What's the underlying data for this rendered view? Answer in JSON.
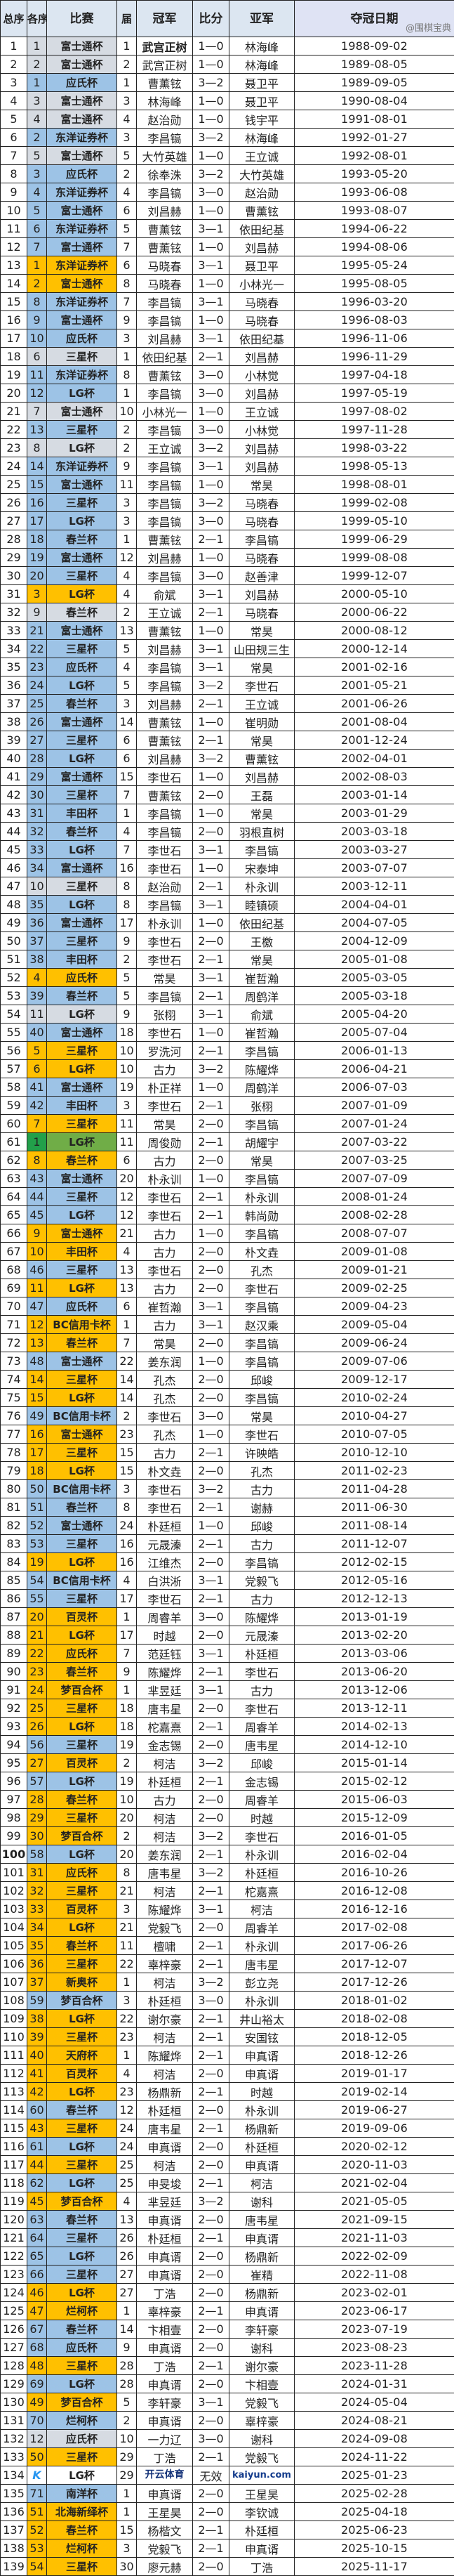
{
  "headers": [
    "总序",
    "各序",
    "比赛",
    "届",
    "冠军",
    "比分",
    "亚军",
    "夺冠日期"
  ],
  "region_colors": {
    "j": "#d6dbe2",
    "k": "#9dc3e6",
    "c": "#ffc000",
    "t": "#5cab4a",
    "n": "#ffffff"
  },
  "rows": [
    [
      "1",
      "1",
      "富士通杯",
      "1",
      "武宫正树",
      "1—0",
      "林海峰",
      "1988-09-02",
      "j"
    ],
    [
      "2",
      "2",
      "富士通杯",
      "2",
      "武宫正树",
      "1—0",
      "林海峰",
      "1989-08-05",
      "j"
    ],
    [
      "3",
      "1",
      "应氏杯",
      "1",
      "曹薰铉",
      "3—2",
      "聂卫平",
      "1989-09-05",
      "k"
    ],
    [
      "4",
      "3",
      "富士通杯",
      "3",
      "林海峰",
      "1—0",
      "聂卫平",
      "1990-08-04",
      "j"
    ],
    [
      "5",
      "4",
      "富士通杯",
      "4",
      "赵治勋",
      "1—0",
      "钱宇平",
      "1991-08-01",
      "j"
    ],
    [
      "6",
      "2",
      "东洋证券杯",
      "3",
      "李昌镐",
      "3—2",
      "林海峰",
      "1992-01-27",
      "k"
    ],
    [
      "7",
      "5",
      "富士通杯",
      "5",
      "大竹英雄",
      "1—0",
      "王立诚",
      "1992-08-01",
      "j"
    ],
    [
      "8",
      "3",
      "应氏杯",
      "2",
      "徐奉洙",
      "3—2",
      "大竹英雄",
      "1993-05-20",
      "k"
    ],
    [
      "9",
      "4",
      "东洋证券杯",
      "4",
      "李昌镐",
      "3—0",
      "赵治勋",
      "1993-06-08",
      "k"
    ],
    [
      "10",
      "5",
      "富士通杯",
      "6",
      "刘昌赫",
      "1—0",
      "曹薰铉",
      "1993-08-07",
      "k"
    ],
    [
      "11",
      "6",
      "东洋证券杯",
      "5",
      "曹薰铉",
      "3—1",
      "依田纪基",
      "1994-06-22",
      "k"
    ],
    [
      "12",
      "7",
      "富士通杯",
      "7",
      "曹薰铉",
      "1—0",
      "刘昌赫",
      "1994-08-06",
      "k"
    ],
    [
      "13",
      "1",
      "东洋证券杯",
      "6",
      "马晓春",
      "3—1",
      "聂卫平",
      "1995-05-24",
      "c"
    ],
    [
      "14",
      "2",
      "富士通杯",
      "8",
      "马晓春",
      "1—0",
      "小林光一",
      "1995-08-05",
      "c"
    ],
    [
      "15",
      "8",
      "东洋证券杯",
      "7",
      "李昌镐",
      "3—1",
      "马晓春",
      "1996-03-20",
      "k"
    ],
    [
      "16",
      "9",
      "富士通杯",
      "9",
      "李昌镐",
      "1—0",
      "马晓春",
      "1996-08-03",
      "k"
    ],
    [
      "17",
      "10",
      "应氏杯",
      "3",
      "刘昌赫",
      "3—1",
      "依田纪基",
      "1996-11-06",
      "k"
    ],
    [
      "18",
      "6",
      "三星杯",
      "1",
      "依田纪基",
      "2—1",
      "刘昌赫",
      "1996-11-29",
      "j"
    ],
    [
      "19",
      "11",
      "东洋证券杯",
      "8",
      "曹薰铉",
      "3—0",
      "小林觉",
      "1997-04-18",
      "k"
    ],
    [
      "20",
      "12",
      "LG杯",
      "1",
      "李昌镐",
      "3—0",
      "刘昌赫",
      "1997-05-19",
      "k"
    ],
    [
      "21",
      "7",
      "富士通杯",
      "10",
      "小林光一",
      "1—0",
      "王立诚",
      "1997-08-02",
      "j"
    ],
    [
      "22",
      "13",
      "三星杯",
      "2",
      "李昌镐",
      "3—0",
      "小林觉",
      "1997-11-28",
      "k"
    ],
    [
      "23",
      "8",
      "LG杯",
      "2",
      "王立诚",
      "3—2",
      "刘昌赫",
      "1998-03-22",
      "j"
    ],
    [
      "24",
      "14",
      "东洋证券杯",
      "9",
      "李昌镐",
      "3—1",
      "刘昌赫",
      "1998-05-13",
      "k"
    ],
    [
      "25",
      "15",
      "富士通杯",
      "11",
      "李昌镐",
      "1—0",
      "常昊",
      "1998-08-01",
      "k"
    ],
    [
      "26",
      "16",
      "三星杯",
      "3",
      "李昌镐",
      "3—2",
      "马晓春",
      "1999-02-08",
      "k"
    ],
    [
      "27",
      "17",
      "LG杯",
      "3",
      "李昌镐",
      "3—0",
      "马晓春",
      "1999-05-10",
      "k"
    ],
    [
      "28",
      "18",
      "春兰杯",
      "1",
      "曹薰铉",
      "2—1",
      "李昌镐",
      "1999-06-29",
      "k"
    ],
    [
      "29",
      "19",
      "富士通杯",
      "12",
      "刘昌赫",
      "1—0",
      "马晓春",
      "1999-08-08",
      "k"
    ],
    [
      "30",
      "20",
      "三星杯",
      "4",
      "李昌镐",
      "3—0",
      "赵善津",
      "1999-12-07",
      "k"
    ],
    [
      "31",
      "3",
      "LG杯",
      "4",
      "俞斌",
      "3—1",
      "刘昌赫",
      "2000-05-10",
      "c"
    ],
    [
      "32",
      "9",
      "春兰杯",
      "2",
      "王立诚",
      "2—1",
      "马晓春",
      "2000-06-22",
      "j"
    ],
    [
      "33",
      "21",
      "富士通杯",
      "13",
      "曹薰铉",
      "1—0",
      "常昊",
      "2000-08-12",
      "k"
    ],
    [
      "34",
      "22",
      "三星杯",
      "5",
      "刘昌赫",
      "3—1",
      "山田规三生",
      "2000-12-14",
      "k"
    ],
    [
      "35",
      "23",
      "应氏杯",
      "4",
      "李昌镐",
      "3—1",
      "常昊",
      "2001-02-16",
      "k"
    ],
    [
      "36",
      "24",
      "LG杯",
      "5",
      "李昌镐",
      "3—2",
      "李世石",
      "2001-05-21",
      "k"
    ],
    [
      "37",
      "25",
      "春兰杯",
      "3",
      "刘昌赫",
      "2—1",
      "王立诚",
      "2001-06-26",
      "k"
    ],
    [
      "38",
      "26",
      "富士通杯",
      "14",
      "曹薰铉",
      "1—0",
      "崔明勋",
      "2001-08-04",
      "k"
    ],
    [
      "39",
      "27",
      "三星杯",
      "6",
      "曹薰铉",
      "2—1",
      "常昊",
      "2001-12-24",
      "k"
    ],
    [
      "40",
      "28",
      "LG杯",
      "6",
      "刘昌赫",
      "3—2",
      "曹薰铉",
      "2002-04-01",
      "k"
    ],
    [
      "41",
      "29",
      "富士通杯",
      "15",
      "李世石",
      "1—0",
      "刘昌赫",
      "2002-08-03",
      "k"
    ],
    [
      "42",
      "30",
      "三星杯",
      "7",
      "曹薰铉",
      "2—0",
      "王磊",
      "2003-01-14",
      "k"
    ],
    [
      "43",
      "31",
      "丰田杯",
      "1",
      "李昌镐",
      "1—0",
      "常昊",
      "2003-01-29",
      "k"
    ],
    [
      "44",
      "32",
      "春兰杯",
      "4",
      "李昌镐",
      "2—0",
      "羽根直树",
      "2003-03-18",
      "k"
    ],
    [
      "45",
      "33",
      "LG杯",
      "7",
      "李世石",
      "3—1",
      "李昌镐",
      "2003-03-27",
      "k"
    ],
    [
      "46",
      "34",
      "富士通杯",
      "16",
      "李世石",
      "1—0",
      "宋泰坤",
      "2003-07-07",
      "k"
    ],
    [
      "47",
      "10",
      "三星杯",
      "8",
      "赵治勋",
      "2—1",
      "朴永训",
      "2003-12-11",
      "j"
    ],
    [
      "48",
      "35",
      "LG杯",
      "8",
      "李昌镐",
      "3—1",
      "睦镇硕",
      "2004-04-01",
      "k"
    ],
    [
      "49",
      "36",
      "富士通杯",
      "17",
      "朴永训",
      "1—0",
      "依田纪基",
      "2004-07-05",
      "k"
    ],
    [
      "50",
      "37",
      "三星杯",
      "9",
      "李世石",
      "2—0",
      "王檄",
      "2004-12-09",
      "k"
    ],
    [
      "51",
      "38",
      "丰田杯",
      "2",
      "李世石",
      "2—1",
      "常昊",
      "2005-01-08",
      "k"
    ],
    [
      "52",
      "4",
      "应氏杯",
      "5",
      "常昊",
      "3—1",
      "崔哲瀚",
      "2005-03-05",
      "c"
    ],
    [
      "53",
      "39",
      "春兰杯",
      "5",
      "李昌镐",
      "2—1",
      "周鹤洋",
      "2005-03-18",
      "k"
    ],
    [
      "54",
      "11",
      "LG杯",
      "9",
      "张栩",
      "3—1",
      "俞斌",
      "2005-04-20",
      "j"
    ],
    [
      "55",
      "40",
      "富士通杯",
      "18",
      "李世石",
      "1—0",
      "崔哲瀚",
      "2005-07-04",
      "k"
    ],
    [
      "56",
      "5",
      "三星杯",
      "10",
      "罗洗河",
      "2—1",
      "李昌镐",
      "2006-01-13",
      "c"
    ],
    [
      "57",
      "6",
      "LG杯",
      "10",
      "古力",
      "3—2",
      "陈耀烨",
      "2006-04-21",
      "c"
    ],
    [
      "58",
      "41",
      "富士通杯",
      "19",
      "朴正祥",
      "1—0",
      "周鹤洋",
      "2006-07-03",
      "k"
    ],
    [
      "59",
      "42",
      "丰田杯",
      "3",
      "李世石",
      "2—1",
      "张栩",
      "2007-01-09",
      "k"
    ],
    [
      "60",
      "7",
      "三星杯",
      "11",
      "常昊",
      "2—0",
      "李昌镐",
      "2007-01-24",
      "c"
    ],
    [
      "61",
      "1",
      "LG杯",
      "11",
      "周俊勋",
      "2—1",
      "胡耀宇",
      "2007-03-22",
      "t"
    ],
    [
      "62",
      "8",
      "春兰杯",
      "6",
      "古力",
      "2—0",
      "常昊",
      "2007-03-25",
      "c"
    ],
    [
      "63",
      "43",
      "富士通杯",
      "20",
      "朴永训",
      "1—0",
      "李昌镐",
      "2007-07-09",
      "k"
    ],
    [
      "64",
      "44",
      "三星杯",
      "12",
      "李世石",
      "2—1",
      "朴永训",
      "2008-01-24",
      "k"
    ],
    [
      "65",
      "45",
      "LG杯",
      "12",
      "李世石",
      "2—1",
      "韩尚勋",
      "2008-02-28",
      "k"
    ],
    [
      "66",
      "9",
      "富士通杯",
      "21",
      "古力",
      "1—0",
      "李昌镐",
      "2008-07-07",
      "c"
    ],
    [
      "67",
      "10",
      "丰田杯",
      "4",
      "古力",
      "2—0",
      "朴文垚",
      "2009-01-08",
      "c"
    ],
    [
      "68",
      "46",
      "三星杯",
      "13",
      "李世石",
      "2—0",
      "孔杰",
      "2009-01-21",
      "k"
    ],
    [
      "69",
      "11",
      "LG杯",
      "13",
      "古力",
      "2—0",
      "李世石",
      "2009-02-25",
      "c"
    ],
    [
      "70",
      "47",
      "应氏杯",
      "6",
      "崔哲瀚",
      "3—1",
      "李昌镐",
      "2009-04-23",
      "k"
    ],
    [
      "71",
      "12",
      "BC信用卡杯",
      "1",
      "古力",
      "3—1",
      "赵汉乘",
      "2009-05-04",
      "c"
    ],
    [
      "72",
      "13",
      "春兰杯",
      "7",
      "常昊",
      "2—0",
      "李昌镐",
      "2009-06-24",
      "c"
    ],
    [
      "73",
      "48",
      "富士通杯",
      "22",
      "姜东润",
      "1—0",
      "李昌镐",
      "2009-07-06",
      "k"
    ],
    [
      "74",
      "14",
      "三星杯",
      "14",
      "孔杰",
      "2—0",
      "邱峻",
      "2009-12-17",
      "c"
    ],
    [
      "75",
      "15",
      "LG杯",
      "14",
      "孔杰",
      "2—0",
      "李昌镐",
      "2010-02-24",
      "c"
    ],
    [
      "76",
      "49",
      "BC信用卡杯",
      "2",
      "李世石",
      "3—0",
      "常昊",
      "2010-04-27",
      "k"
    ],
    [
      "77",
      "16",
      "富士通杯",
      "23",
      "孔杰",
      "1—0",
      "李世石",
      "2010-07-05",
      "c"
    ],
    [
      "78",
      "17",
      "三星杯",
      "15",
      "古力",
      "2—1",
      "许映皓",
      "2010-12-10",
      "c"
    ],
    [
      "79",
      "18",
      "LG杯",
      "15",
      "朴文垚",
      "2—0",
      "孔杰",
      "2011-02-23",
      "c"
    ],
    [
      "80",
      "50",
      "BC信用卡杯",
      "3",
      "李世石",
      "3—2",
      "古力",
      "2011-04-28",
      "k"
    ],
    [
      "81",
      "51",
      "春兰杯",
      "8",
      "李世石",
      "2—1",
      "谢赫",
      "2011-06-30",
      "k"
    ],
    [
      "82",
      "52",
      "富士通杯",
      "24",
      "朴廷桓",
      "1—0",
      "邱峻",
      "2011-08-14",
      "k"
    ],
    [
      "83",
      "53",
      "三星杯",
      "16",
      "元晟溱",
      "2—1",
      "古力",
      "2011-12-07",
      "k"
    ],
    [
      "84",
      "19",
      "LG杯",
      "16",
      "江维杰",
      "2—0",
      "李昌镐",
      "2012-02-15",
      "c"
    ],
    [
      "85",
      "54",
      "BC信用卡杯",
      "4",
      "白洪淅",
      "3—1",
      "党毅飞",
      "2012-05-16",
      "k"
    ],
    [
      "86",
      "55",
      "三星杯",
      "17",
      "李世石",
      "2—1",
      "古力",
      "2012-12-13",
      "k"
    ],
    [
      "87",
      "20",
      "百灵杯",
      "1",
      "周睿羊",
      "3—0",
      "陈耀烨",
      "2013-01-19",
      "c"
    ],
    [
      "88",
      "21",
      "LG杯",
      "17",
      "时越",
      "2—0",
      "元晟溱",
      "2013-02-20",
      "c"
    ],
    [
      "89",
      "22",
      "应氏杯",
      "7",
      "范廷钰",
      "3—1",
      "朴廷桓",
      "2013-03-06",
      "c"
    ],
    [
      "90",
      "23",
      "春兰杯",
      "9",
      "陈耀烨",
      "2—1",
      "李世石",
      "2013-06-20",
      "c"
    ],
    [
      "91",
      "24",
      "梦百合杯",
      "1",
      "芈昱廷",
      "3—1",
      "古力",
      "2013-12-06",
      "c"
    ],
    [
      "92",
      "25",
      "三星杯",
      "18",
      "唐韦星",
      "2—0",
      "李世石",
      "2013-12-11",
      "c"
    ],
    [
      "93",
      "26",
      "LG杯",
      "18",
      "柁嘉熹",
      "2—1",
      "周睿羊",
      "2014-02-13",
      "c"
    ],
    [
      "94",
      "56",
      "三星杯",
      "19",
      "金志锡",
      "2—0",
      "唐韦星",
      "2014-12-10",
      "k"
    ],
    [
      "95",
      "27",
      "百灵杯",
      "2",
      "柯洁",
      "3—2",
      "邱峻",
      "2015-01-14",
      "c"
    ],
    [
      "96",
      "57",
      "LG杯",
      "19",
      "朴廷桓",
      "2—1",
      "金志锡",
      "2015-02-12",
      "k"
    ],
    [
      "97",
      "28",
      "春兰杯",
      "10",
      "古力",
      "2—0",
      "周睿羊",
      "2015-06-03",
      "c"
    ],
    [
      "98",
      "29",
      "三星杯",
      "20",
      "柯洁",
      "2—0",
      "时越",
      "2015-12-09",
      "c"
    ],
    [
      "99",
      "30",
      "梦百合杯",
      "2",
      "柯洁",
      "3—2",
      "李世石",
      "2016-01-05",
      "c"
    ],
    [
      "100",
      "58",
      "LG杯",
      "20",
      "姜东润",
      "2—1",
      "朴永训",
      "2016-02-04",
      "k"
    ],
    [
      "101",
      "31",
      "应氏杯",
      "8",
      "唐韦星",
      "3—2",
      "朴廷桓",
      "2016-10-26",
      "c"
    ],
    [
      "102",
      "32",
      "三星杯",
      "21",
      "柯洁",
      "2—1",
      "柁嘉熹",
      "2016-12-08",
      "c"
    ],
    [
      "103",
      "33",
      "百灵杯",
      "3",
      "陈耀烨",
      "3—1",
      "柯洁",
      "2016-12-16",
      "c"
    ],
    [
      "104",
      "34",
      "LG杯",
      "21",
      "党毅飞",
      "2—0",
      "周睿羊",
      "2017-02-08",
      "c"
    ],
    [
      "105",
      "35",
      "春兰杯",
      "11",
      "檀啸",
      "2—1",
      "朴永训",
      "2017-06-26",
      "c"
    ],
    [
      "106",
      "36",
      "三星杯",
      "22",
      "辜梓豪",
      "2—1",
      "唐韦星",
      "2017-12-07",
      "c"
    ],
    [
      "107",
      "37",
      "新奥杯",
      "1",
      "柯洁",
      "3—2",
      "彭立尧",
      "2017-12-26",
      "c"
    ],
    [
      "108",
      "59",
      "梦百合杯",
      "3",
      "朴廷桓",
      "3—0",
      "朴永训",
      "2018-01-02",
      "k"
    ],
    [
      "109",
      "38",
      "LG杯",
      "22",
      "谢尔豪",
      "2—1",
      "井山裕太",
      "2018-02-08",
      "c"
    ],
    [
      "110",
      "39",
      "三星杯",
      "23",
      "柯洁",
      "2—1",
      "安国铉",
      "2018-12-05",
      "c"
    ],
    [
      "111",
      "40",
      "天府杯",
      "1",
      "陈耀烨",
      "2—1",
      "申真谞",
      "2018-12-26",
      "c"
    ],
    [
      "112",
      "41",
      "百灵杯",
      "4",
      "柯洁",
      "2—0",
      "申真谞",
      "2019-01-17",
      "c"
    ],
    [
      "113",
      "42",
      "LG杯",
      "23",
      "杨鼎新",
      "2—1",
      "时越",
      "2019-02-14",
      "c"
    ],
    [
      "114",
      "60",
      "春兰杯",
      "12",
      "朴廷桓",
      "2—0",
      "朴永训",
      "2019-06-27",
      "k"
    ],
    [
      "115",
      "43",
      "三星杯",
      "24",
      "唐韦星",
      "2—1",
      "杨鼎新",
      "2019-09-06",
      "c"
    ],
    [
      "116",
      "61",
      "LG杯",
      "24",
      "申真谞",
      "2—0",
      "朴廷桓",
      "2020-02-12",
      "k"
    ],
    [
      "117",
      "44",
      "三星杯",
      "25",
      "柯洁",
      "2—0",
      "申真谞",
      "2020-11-03",
      "c"
    ],
    [
      "118",
      "62",
      "LG杯",
      "25",
      "申旻埈",
      "2—1",
      "柯洁",
      "2021-02-04",
      "k"
    ],
    [
      "119",
      "45",
      "梦百合杯",
      "4",
      "芈昱廷",
      "3—2",
      "谢科",
      "2021-05-05",
      "c"
    ],
    [
      "120",
      "63",
      "春兰杯",
      "13",
      "申真谞",
      "2—0",
      "唐韦星",
      "2021-09-15",
      "k"
    ],
    [
      "121",
      "64",
      "三星杯",
      "26",
      "朴廷桓",
      "2—1",
      "申真谞",
      "2021-11-03",
      "k"
    ],
    [
      "122",
      "65",
      "LG杯",
      "26",
      "申真谞",
      "2—0",
      "杨鼎新",
      "2022-02-09",
      "k"
    ],
    [
      "123",
      "66",
      "三星杯",
      "27",
      "申真谞",
      "2—0",
      "崔精",
      "2022-11-08",
      "k"
    ],
    [
      "124",
      "46",
      "LG杯",
      "27",
      "丁浩",
      "2—0",
      "杨鼎新",
      "2023-02-01",
      "c"
    ],
    [
      "125",
      "47",
      "烂柯杯",
      "1",
      "辜梓豪",
      "2—1",
      "申真谞",
      "2023-06-17",
      "c"
    ],
    [
      "126",
      "67",
      "春兰杯",
      "14",
      "卞相壹",
      "2—0",
      "李轩豪",
      "2023-07-19",
      "k"
    ],
    [
      "127",
      "68",
      "应氏杯",
      "9",
      "申真谞",
      "2—0",
      "谢科",
      "2023-08-23",
      "k"
    ],
    [
      "128",
      "48",
      "三星杯",
      "28",
      "丁浩",
      "2—1",
      "谢尔豪",
      "2023-11-28",
      "c"
    ],
    [
      "129",
      "69",
      "LG杯",
      "28",
      "申真谞",
      "2—0",
      "卞相壹",
      "2024-01-31",
      "k"
    ],
    [
      "130",
      "49",
      "梦百合杯",
      "5",
      "李轩豪",
      "3—1",
      "党毅飞",
      "2024-05-04",
      "c"
    ],
    [
      "131",
      "70",
      "烂柯杯",
      "2",
      "申真谞",
      "2—0",
      "辜梓豪",
      "2024-08-21",
      "k"
    ],
    [
      "132",
      "12",
      "应氏杯",
      "10",
      "一力辽",
      "3—0",
      "谢科",
      "2024-09-08",
      "j"
    ],
    [
      "133",
      "50",
      "三星杯",
      "29",
      "丁浩",
      "2—1",
      "党毅飞",
      "2024-11-22",
      "c"
    ],
    [
      "134",
      "",
      "LG杯",
      "29",
      "",
      "无效",
      "",
      "2025-01-23",
      "n"
    ],
    [
      "135",
      "71",
      "南洋杯",
      "1",
      "申真谞",
      "2—0",
      "王星昊",
      "2025-02-28",
      "k"
    ],
    [
      "136",
      "51",
      "北海新绎杯",
      "1",
      "王星昊",
      "2—0",
      "李钦诚",
      "2025-04-18",
      "c"
    ],
    [
      "137",
      "52",
      "春兰杯",
      "15",
      "杨楷文",
      "2—1",
      "朴廷桓",
      "2025-06-23",
      "c"
    ],
    [
      "138",
      "53",
      "烂柯杯",
      "3",
      "党毅飞",
      "2—1",
      "申真谞",
      "2025-10-15",
      "c"
    ],
    [
      "139",
      "54",
      "三星杯",
      "30",
      "廖元赫",
      "2—0",
      "丁浩",
      "2025-11-17",
      "c"
    ]
  ],
  "watermark": {
    "logo_letter": "K",
    "brand_cn": "开云体育",
    "brand_url": "kaiyun.com",
    "weibo": "@围棋宝典"
  }
}
